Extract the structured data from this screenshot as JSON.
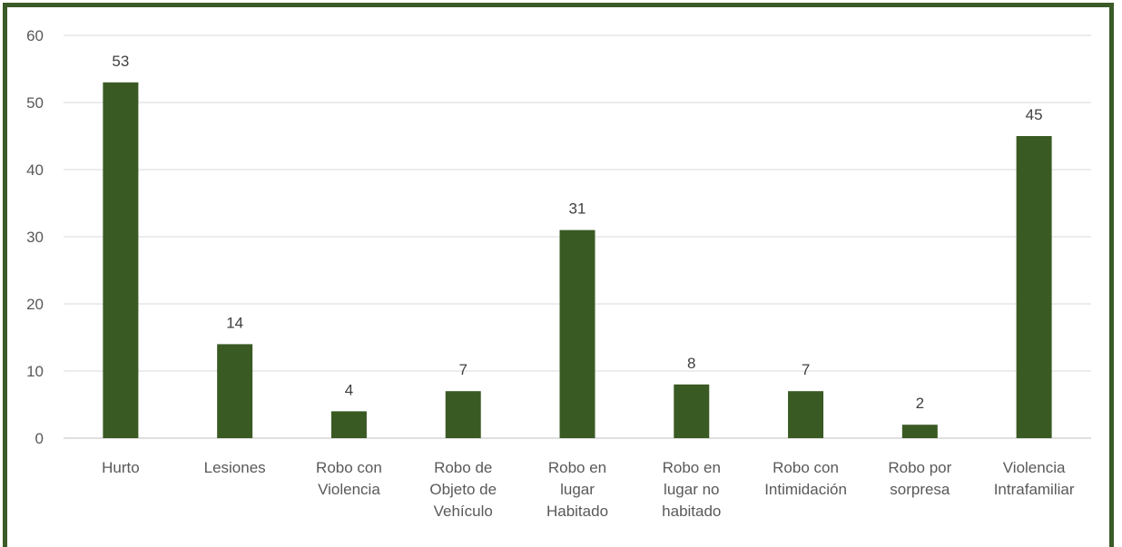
{
  "chart_data": {
    "type": "bar",
    "categories": [
      [
        "Hurto"
      ],
      [
        "Lesiones"
      ],
      [
        "Robo con",
        "Violencia"
      ],
      [
        "Robo de",
        "Objeto de",
        "Vehículo"
      ],
      [
        "Robo en",
        "lugar",
        "Habitado"
      ],
      [
        "Robo en",
        "lugar no",
        "habitado"
      ],
      [
        "Robo con",
        "Intimidación"
      ],
      [
        "Robo por",
        "sorpresa"
      ],
      [
        "Violencia",
        "Intrafamiliar"
      ]
    ],
    "values": [
      53,
      14,
      4,
      7,
      31,
      8,
      7,
      2,
      45
    ],
    "ylim": [
      0,
      60
    ],
    "yticks": [
      0,
      10,
      20,
      30,
      40,
      50,
      60
    ],
    "title": "",
    "xlabel": "",
    "ylabel": "",
    "grid": true,
    "data_labels": true,
    "colors": {
      "bar": "#3a5a23",
      "grid": "#d9d9d9",
      "frame": "#3a5a27"
    }
  }
}
